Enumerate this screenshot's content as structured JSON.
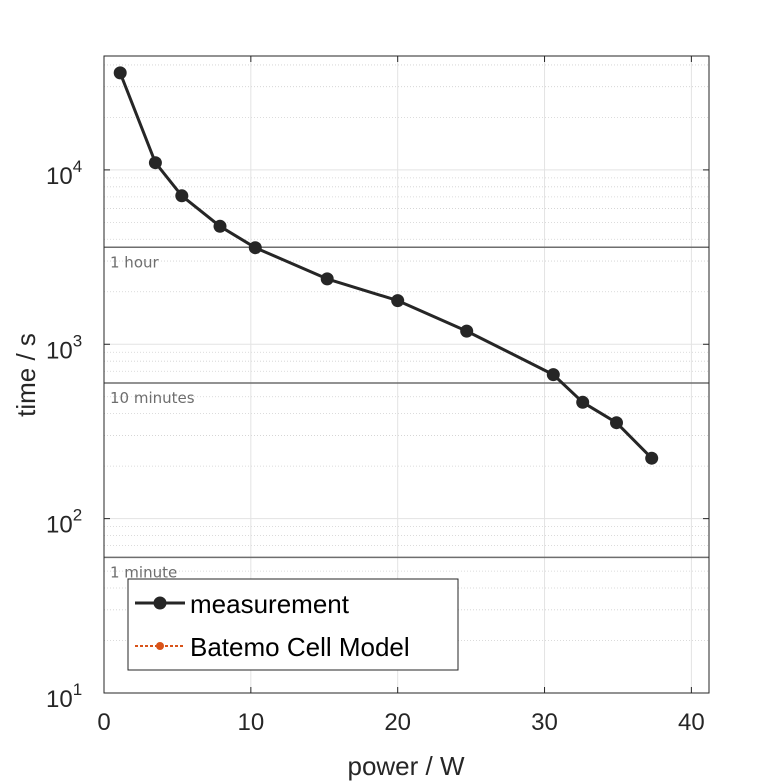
{
  "chart_data": {
    "type": "line",
    "xlabel": "power / W",
    "ylabel": "time / s",
    "xlim": [
      0,
      41.2
    ],
    "ylim": [
      10,
      45000
    ],
    "yscale": "log",
    "grid": true,
    "minor_grid": true,
    "x_ticks": [
      0,
      10,
      20,
      30,
      40
    ],
    "x_tick_labels": [
      "0",
      "10",
      "20",
      "30",
      "40"
    ],
    "y_ticks": [
      10,
      100,
      1000,
      10000
    ],
    "y_tick_labels": [
      {
        "base": "10",
        "exp": "1"
      },
      {
        "base": "10",
        "exp": "2"
      },
      {
        "base": "10",
        "exp": "3"
      },
      {
        "base": "10",
        "exp": "4"
      }
    ],
    "reference_lines": [
      {
        "value": 3600,
        "label": "1 hour"
      },
      {
        "value": 600,
        "label": "10 minutes"
      },
      {
        "value": 60,
        "label": "1 minute"
      }
    ],
    "series": [
      {
        "name": "measurement",
        "color": "#262626",
        "x": [
          1.1,
          3.5,
          5.3,
          7.9,
          10.3,
          15.2,
          20.0,
          24.7,
          30.6,
          32.6,
          34.9,
          37.3
        ],
        "y": [
          36000,
          11000,
          7100,
          4750,
          3580,
          2370,
          1780,
          1190,
          670,
          465,
          355,
          222
        ]
      },
      {
        "name": "Batemo Cell Model",
        "color": "#D95319",
        "x": [],
        "y": []
      }
    ],
    "legend_position": "bottom-left"
  }
}
